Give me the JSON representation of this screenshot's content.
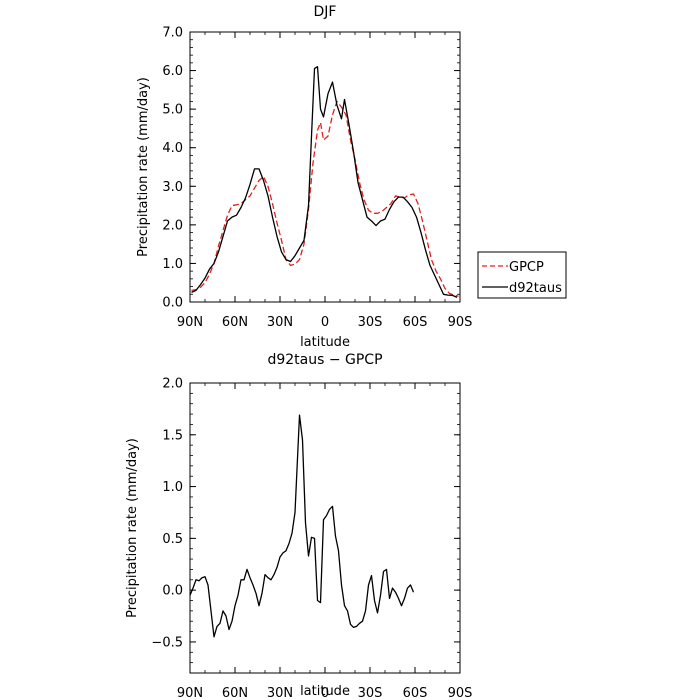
{
  "chart_data": [
    {
      "type": "line",
      "title": "DJF",
      "xlabel": "latitude",
      "ylabel": "Precipitation rate (mm/day)",
      "xlim": [
        90,
        -90
      ],
      "ylim": [
        0,
        7
      ],
      "x_ticks": [
        90,
        60,
        30,
        0,
        -30,
        -60,
        -90
      ],
      "x_tick_labels": [
        "90N",
        "60N",
        "30N",
        "0",
        "30S",
        "60S",
        "90S"
      ],
      "y_ticks": [
        0,
        1,
        2,
        3,
        4,
        5,
        6,
        7
      ],
      "y_tick_labels": [
        "0.0",
        "1.0",
        "2.0",
        "3.0",
        "4.0",
        "5.0",
        "6.0",
        "7.0"
      ],
      "grid": false,
      "legend_position": "outside-right",
      "series": [
        {
          "name": "GPCP",
          "color": "#e0201e",
          "style": "dashed",
          "points": [
            [
              89,
              0.3
            ],
            [
              86,
              0.32
            ],
            [
              83,
              0.38
            ],
            [
              80,
              0.5
            ],
            [
              77,
              0.72
            ],
            [
              74,
              1.0
            ],
            [
              71,
              1.45
            ],
            [
              68,
              1.85
            ],
            [
              65,
              2.25
            ],
            [
              62,
              2.5
            ],
            [
              59,
              2.52
            ],
            [
              56,
              2.55
            ],
            [
              53,
              2.65
            ],
            [
              50,
              2.75
            ],
            [
              47,
              2.95
            ],
            [
              44,
              3.15
            ],
            [
              41,
              3.25
            ],
            [
              38,
              3.0
            ],
            [
              35,
              2.55
            ],
            [
              32,
              2.05
            ],
            [
              29,
              1.6
            ],
            [
              26,
              1.1
            ],
            [
              23,
              0.95
            ],
            [
              20,
              0.98
            ],
            [
              17,
              1.1
            ],
            [
              14,
              1.5
            ],
            [
              11,
              2.4
            ],
            [
              8,
              3.6
            ],
            [
              5,
              4.45
            ],
            [
              3,
              4.65
            ],
            [
              1,
              4.2
            ],
            [
              -2,
              4.3
            ],
            [
              -5,
              4.85
            ],
            [
              -8,
              5.2
            ],
            [
              -11,
              5.05
            ],
            [
              -14,
              4.85
            ],
            [
              -17,
              4.2
            ],
            [
              -20,
              3.7
            ],
            [
              -23,
              3.1
            ],
            [
              -26,
              2.65
            ],
            [
              -29,
              2.38
            ],
            [
              -32,
              2.3
            ],
            [
              -35,
              2.3
            ],
            [
              -38,
              2.35
            ],
            [
              -41,
              2.45
            ],
            [
              -44,
              2.55
            ],
            [
              -47,
              2.75
            ],
            [
              -50,
              2.72
            ],
            [
              -53,
              2.7
            ],
            [
              -56,
              2.78
            ],
            [
              -59,
              2.8
            ],
            [
              -62,
              2.55
            ],
            [
              -65,
              2.1
            ],
            [
              -68,
              1.6
            ],
            [
              -71,
              1.1
            ],
            [
              -74,
              0.8
            ],
            [
              -77,
              0.6
            ],
            [
              -80,
              0.35
            ],
            [
              -83,
              0.22
            ],
            [
              -86,
              0.18
            ],
            [
              -89,
              0.15
            ]
          ]
        },
        {
          "name": "d92taus",
          "color": "#000000",
          "style": "solid",
          "points": [
            [
              89,
              0.25
            ],
            [
              86,
              0.3
            ],
            [
              83,
              0.45
            ],
            [
              80,
              0.62
            ],
            [
              77,
              0.85
            ],
            [
              74,
              1.0
            ],
            [
              71,
              1.3
            ],
            [
              68,
              1.7
            ],
            [
              65,
              2.1
            ],
            [
              62,
              2.2
            ],
            [
              59,
              2.25
            ],
            [
              56,
              2.45
            ],
            [
              53,
              2.7
            ],
            [
              50,
              3.05
            ],
            [
              47,
              3.45
            ],
            [
              44,
              3.45
            ],
            [
              41,
              3.15
            ],
            [
              38,
              2.75
            ],
            [
              35,
              2.2
            ],
            [
              32,
              1.7
            ],
            [
              29,
              1.3
            ],
            [
              26,
              1.1
            ],
            [
              23,
              1.05
            ],
            [
              20,
              1.2
            ],
            [
              17,
              1.4
            ],
            [
              14,
              1.6
            ],
            [
              11,
              2.5
            ],
            [
              9,
              4.3
            ],
            [
              7,
              6.05
            ],
            [
              5,
              6.1
            ],
            [
              3,
              5.0
            ],
            [
              1,
              4.8
            ],
            [
              -2,
              5.4
            ],
            [
              -5,
              5.7
            ],
            [
              -8,
              5.1
            ],
            [
              -11,
              4.75
            ],
            [
              -13,
              5.25
            ],
            [
              -16,
              4.6
            ],
            [
              -19,
              3.9
            ],
            [
              -22,
              3.1
            ],
            [
              -25,
              2.65
            ],
            [
              -28,
              2.2
            ],
            [
              -31,
              2.1
            ],
            [
              -34,
              1.98
            ],
            [
              -37,
              2.1
            ],
            [
              -40,
              2.15
            ],
            [
              -43,
              2.4
            ],
            [
              -46,
              2.6
            ],
            [
              -49,
              2.72
            ],
            [
              -52,
              2.72
            ],
            [
              -55,
              2.6
            ],
            [
              -58,
              2.45
            ],
            [
              -61,
              2.2
            ],
            [
              -64,
              1.8
            ],
            [
              -67,
              1.35
            ],
            [
              -70,
              0.95
            ],
            [
              -73,
              0.7
            ],
            [
              -76,
              0.45
            ],
            [
              -79,
              0.2
            ],
            [
              -82,
              0.18
            ],
            [
              -85,
              0.17
            ],
            [
              -88,
              0.12
            ]
          ]
        }
      ]
    },
    {
      "type": "line",
      "title": "d92taus − GPCP",
      "xlabel": "latitude",
      "ylabel": "Precipitation rate (mm/day)",
      "xlim": [
        90,
        -90
      ],
      "ylim": [
        -0.8,
        2.0
      ],
      "x_ticks": [
        90,
        60,
        30,
        0,
        -30,
        -60,
        -90
      ],
      "x_tick_labels": [
        "90N",
        "60N",
        "30N",
        "0",
        "30S",
        "60S",
        "90S"
      ],
      "y_ticks": [
        -0.5,
        0,
        0.5,
        1.0,
        1.5,
        2.0
      ],
      "y_tick_labels": [
        "−0.5",
        "0.0",
        "0.5",
        "1.0",
        "1.5",
        "2.0"
      ],
      "grid": false,
      "series": [
        {
          "color": "#000000",
          "style": "solid",
          "points": [
            [
              90,
              -0.05
            ],
            [
              88,
              0.02
            ],
            [
              86,
              0.1
            ],
            [
              84,
              0.09
            ],
            [
              82,
              0.12
            ],
            [
              80,
              0.13
            ],
            [
              78,
              0.05
            ],
            [
              76,
              -0.2
            ],
            [
              74,
              -0.45
            ],
            [
              72,
              -0.35
            ],
            [
              70,
              -0.32
            ],
            [
              68,
              -0.2
            ],
            [
              66,
              -0.25
            ],
            [
              64,
              -0.38
            ],
            [
              62,
              -0.3
            ],
            [
              60,
              -0.15
            ],
            [
              58,
              -0.05
            ],
            [
              56,
              0.1
            ],
            [
              54,
              0.1
            ],
            [
              52,
              0.2
            ],
            [
              50,
              0.12
            ],
            [
              48,
              0.05
            ],
            [
              46,
              -0.03
            ],
            [
              44,
              -0.15
            ],
            [
              42,
              -0.03
            ],
            [
              40,
              0.15
            ],
            [
              38,
              0.12
            ],
            [
              36,
              0.1
            ],
            [
              34,
              0.15
            ],
            [
              32,
              0.22
            ],
            [
              30,
              0.32
            ],
            [
              28,
              0.36
            ],
            [
              26,
              0.38
            ],
            [
              24,
              0.45
            ],
            [
              22,
              0.55
            ],
            [
              20,
              0.75
            ],
            [
              17,
              1.69
            ],
            [
              15,
              1.45
            ],
            [
              13,
              0.65
            ],
            [
              11,
              0.33
            ],
            [
              9,
              0.51
            ],
            [
              7,
              0.5
            ],
            [
              5,
              -0.1
            ],
            [
              3,
              -0.12
            ],
            [
              1,
              0.68
            ],
            [
              -1,
              0.72
            ],
            [
              -3,
              0.78
            ],
            [
              -5,
              0.81
            ],
            [
              -7,
              0.52
            ],
            [
              -9,
              0.38
            ],
            [
              -11,
              0.05
            ],
            [
              -13,
              -0.15
            ],
            [
              -15,
              -0.2
            ],
            [
              -17,
              -0.33
            ],
            [
              -19,
              -0.36
            ],
            [
              -21,
              -0.35
            ],
            [
              -23,
              -0.32
            ],
            [
              -25,
              -0.3
            ],
            [
              -27,
              -0.2
            ],
            [
              -29,
              0.05
            ],
            [
              -31,
              0.14
            ],
            [
              -33,
              -0.1
            ],
            [
              -35,
              -0.22
            ],
            [
              -37,
              -0.05
            ],
            [
              -39,
              0.18
            ],
            [
              -41,
              0.2
            ],
            [
              -43,
              -0.08
            ],
            [
              -45,
              0.02
            ],
            [
              -47,
              -0.02
            ],
            [
              -49,
              -0.08
            ],
            [
              -51,
              -0.15
            ],
            [
              -53,
              -0.08
            ],
            [
              -55,
              0.02
            ],
            [
              -57,
              0.05
            ],
            [
              -59,
              -0.02
            ]
          ]
        }
      ]
    }
  ]
}
